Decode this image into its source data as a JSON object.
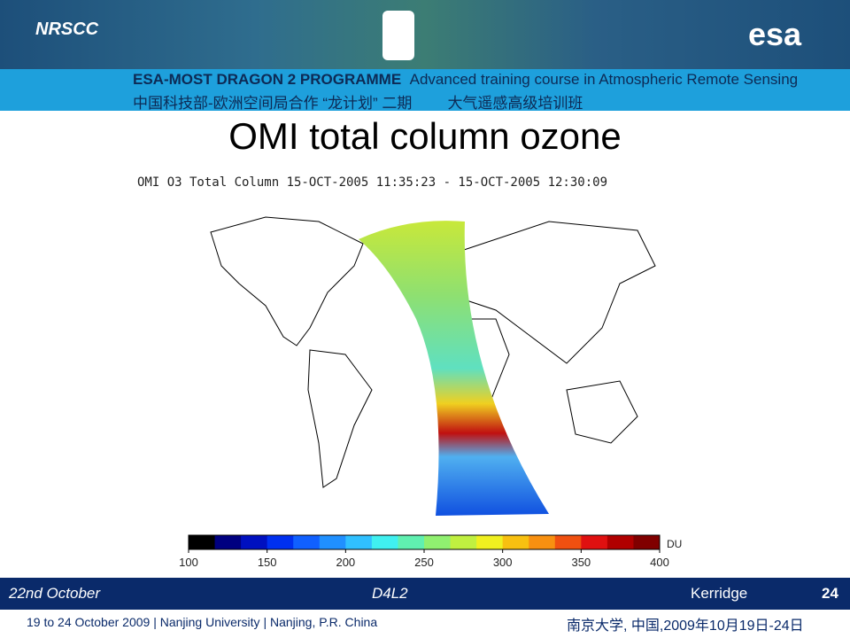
{
  "header": {
    "logo_left": "NRSCC",
    "logo_right": "esa",
    "programme": "ESA-MOST DRAGON 2 PROGRAMME",
    "course": "Advanced training course in Atmospheric Remote Sensing",
    "chinese": "中国科技部-欧洲空间局合作 “龙计划” 二期",
    "chinese_course": "大气遥感高级培训班"
  },
  "title": "OMI total column ozone",
  "figure": {
    "title": "OMI O3 Total Column 15-OCT-2005 11:35:23 - 15-OCT-2005 12:30:09",
    "colorbar": {
      "ticks": [
        100,
        150,
        200,
        250,
        300,
        350,
        400
      ],
      "unit": "DU"
    }
  },
  "footer": {
    "date": "22nd October",
    "session": "D4L2",
    "speaker": "Kerridge",
    "page": "24"
  },
  "bottom": {
    "left": "19 to 24 October 2009 | Nanjing University | Nanjing, P.R. China",
    "right": "南京大学, 中国,2009年10月19日-24日"
  }
}
